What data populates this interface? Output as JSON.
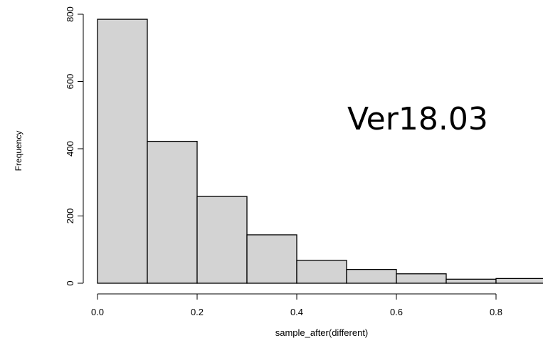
{
  "chart_data": {
    "type": "bar",
    "title": "",
    "xlabel": "sample_after(different)",
    "ylabel": "Frequency",
    "annotation": "Ver18.03",
    "bins": [
      {
        "x0": 0.0,
        "x1": 0.1,
        "count": 785
      },
      {
        "x0": 0.1,
        "x1": 0.2,
        "count": 422
      },
      {
        "x0": 0.2,
        "x1": 0.3,
        "count": 258
      },
      {
        "x0": 0.3,
        "x1": 0.4,
        "count": 144
      },
      {
        "x0": 0.4,
        "x1": 0.5,
        "count": 68
      },
      {
        "x0": 0.5,
        "x1": 0.6,
        "count": 41
      },
      {
        "x0": 0.6,
        "x1": 0.7,
        "count": 28
      },
      {
        "x0": 0.7,
        "x1": 0.8,
        "count": 12
      },
      {
        "x0": 0.8,
        "x1": 0.9,
        "count": 14
      }
    ],
    "xlim": [
      0.0,
      0.9
    ],
    "ylim": [
      0,
      800
    ],
    "xticks": [
      {
        "value": 0.0,
        "label": "0.0"
      },
      {
        "value": 0.2,
        "label": "0.2"
      },
      {
        "value": 0.4,
        "label": "0.4"
      },
      {
        "value": 0.6,
        "label": "0.6"
      },
      {
        "value": 0.8,
        "label": "0.8"
      }
    ],
    "yticks": [
      {
        "value": 0,
        "label": "0"
      },
      {
        "value": 200,
        "label": "200"
      },
      {
        "value": 400,
        "label": "400"
      },
      {
        "value": 600,
        "label": "600"
      },
      {
        "value": 800,
        "label": "800"
      }
    ],
    "bar_color": "#d3d3d3",
    "edge_color": "#000000",
    "grid": false
  }
}
